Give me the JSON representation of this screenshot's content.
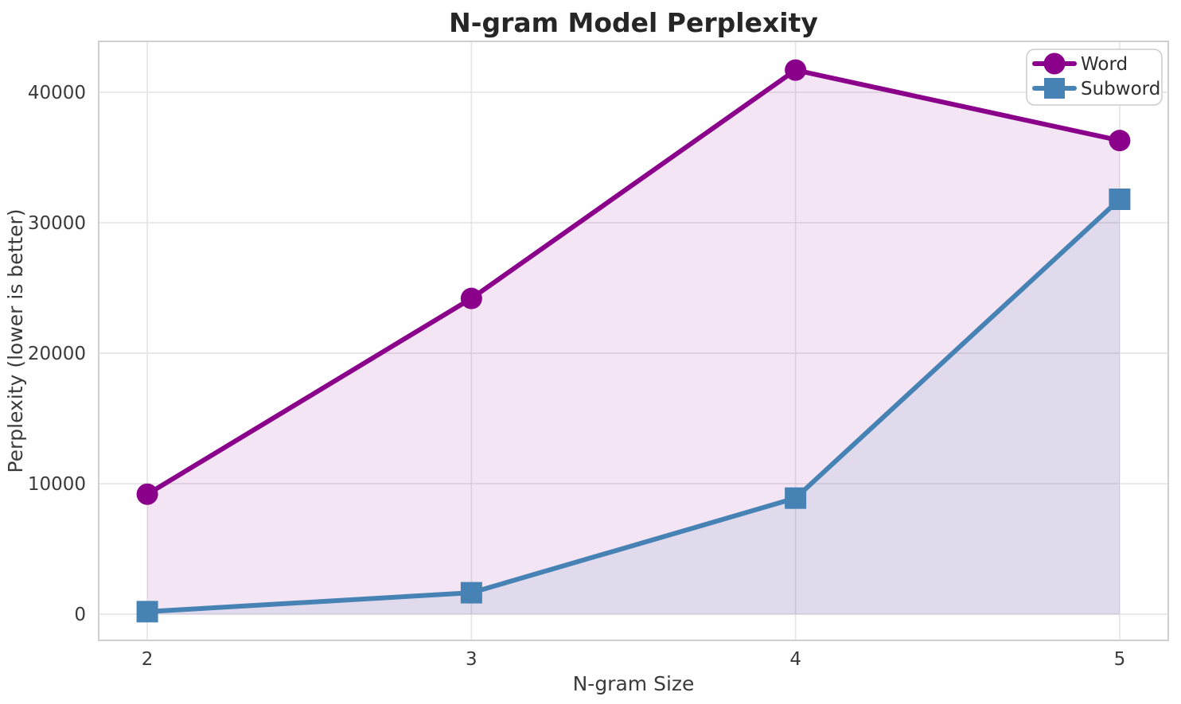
{
  "chart_data": {
    "type": "line",
    "title": "N-gram Model Perplexity",
    "xlabel": "N-gram Size",
    "ylabel": "Perplexity (lower is better)",
    "x": [
      2,
      3,
      4,
      5
    ],
    "series": [
      {
        "name": "Word",
        "values": [
          9200,
          24200,
          41700,
          36300
        ],
        "color": "#8B008B",
        "marker": "circle",
        "fill_alpha": 0.1
      },
      {
        "name": "Subword",
        "values": [
          200,
          1650,
          8900,
          31800
        ],
        "color": "#4682B4",
        "marker": "square",
        "fill_alpha": 0.1
      }
    ],
    "xticks": [
      2,
      3,
      4,
      5
    ],
    "yticks": [
      0,
      10000,
      20000,
      30000,
      40000
    ],
    "xtick_labels": [
      "2",
      "3",
      "4",
      "5"
    ],
    "ytick_labels": [
      "0",
      "10000",
      "20000",
      "30000",
      "40000"
    ],
    "xlim": [
      1.85,
      5.15
    ],
    "ylim": [
      -2000,
      43900
    ],
    "grid": true,
    "fill_baseline": 0,
    "legend_position": "upper right",
    "legend_entries": [
      "Word",
      "Subword"
    ],
    "line_width": 6,
    "marker_size": 27,
    "background_color": "#ffffff",
    "grid_color": "#e7e7e7",
    "spine_color": "#cfcfcf"
  }
}
